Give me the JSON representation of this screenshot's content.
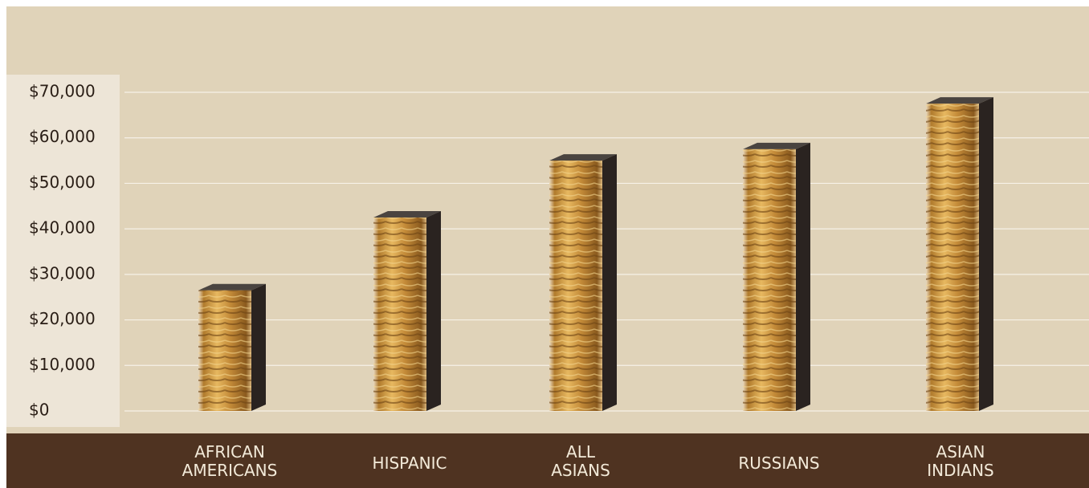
{
  "chart_data": {
    "type": "bar",
    "categories": [
      "AFRICAN\nAMERICANS",
      "HISPANIC",
      "ALL\nASIANS",
      "RUSSIANS",
      "ASIAN\nINDIANS"
    ],
    "values": [
      26500,
      42500,
      55000,
      57500,
      67500
    ],
    "ylim": [
      0,
      70000
    ],
    "yticks": [
      {
        "value": 0,
        "label": "$0"
      },
      {
        "value": 10000,
        "label": "$10,000"
      },
      {
        "value": 20000,
        "label": "$20,000"
      },
      {
        "value": 30000,
        "label": "$30,000"
      },
      {
        "value": 40000,
        "label": "$40,000"
      },
      {
        "value": 50000,
        "label": "$50,000"
      },
      {
        "value": 60000,
        "label": "$60,000"
      },
      {
        "value": 70000,
        "label": "$70,000"
      }
    ],
    "grid": true
  }
}
